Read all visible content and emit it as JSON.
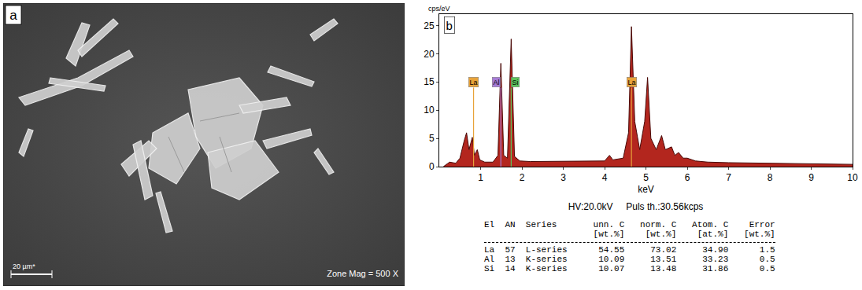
{
  "chart_data": {
    "type": "area",
    "panel": "b",
    "x_label": "keV",
    "y_label": "cps/eV",
    "color": "#b3261e",
    "x": [
      0.1,
      0.25,
      0.4,
      0.5,
      0.6,
      0.66,
      0.72,
      0.8,
      0.85,
      0.92,
      0.98,
      1.1,
      1.3,
      1.42,
      1.49,
      1.56,
      1.65,
      1.74,
      1.82,
      1.95,
      2.2,
      2.5,
      3.0,
      3.5,
      4.0,
      4.12,
      4.2,
      4.45,
      4.58,
      4.65,
      4.73,
      4.85,
      4.97,
      5.04,
      5.12,
      5.25,
      5.38,
      5.47,
      5.62,
      5.7,
      5.79,
      5.9,
      6.0,
      6.2,
      6.5,
      7.0,
      8.0,
      9.0,
      10.0
    ],
    "values": [
      0,
      0.8,
      0.6,
      1.5,
      4.5,
      6,
      3,
      5.2,
      2,
      3,
      1.2,
      0.8,
      0.8,
      2,
      18.3,
      2,
      1.5,
      22.6,
      1.8,
      1,
      0.9,
      0.9,
      0.9,
      0.9,
      1,
      2,
      1.2,
      1.5,
      6,
      24.8,
      8,
      3,
      8,
      15.8,
      5,
      3,
      5.5,
      3,
      3.5,
      2,
      2.5,
      1.5,
      1.5,
      1,
      0.8,
      0.7,
      0.6,
      0.5,
      0.4
    ],
    "xlim": [
      0,
      10
    ],
    "xticks": [
      1,
      2,
      3,
      4,
      5,
      6,
      7,
      8,
      9,
      10
    ],
    "ylim": [
      0,
      27
    ],
    "yticks": [
      0,
      5,
      10,
      15,
      20,
      25
    ],
    "peak_lines": [
      {
        "label": "La",
        "energy": 0.83,
        "height": 14,
        "color": "#e8a33a"
      },
      {
        "label": "Al",
        "energy": 1.49,
        "height": 14,
        "color": "#a67bd6"
      },
      {
        "label": "Si",
        "energy": 1.74,
        "height": 14,
        "color": "#5cc45c"
      },
      {
        "label": "La",
        "energy": 4.65,
        "height": 14,
        "color": "#e8a33a"
      }
    ]
  },
  "image_panel": {
    "label": "a",
    "scale_bar": "20 µm*",
    "magnification": "Zone Mag = 500 X"
  },
  "instrument": [
    "HV:20.0kV",
    "Puls th.:30.56kcps"
  ],
  "table": {
    "header": [
      "El",
      "AN",
      "Series",
      "unn. C",
      "norm. C",
      "Atom. C",
      "Error"
    ],
    "units": [
      null,
      null,
      null,
      "[wt.%]",
      "[wt.%]",
      "[at.%]",
      "[wt.%]"
    ],
    "rows": [
      [
        "La",
        "57",
        "L-series",
        "54.55",
        "73.02",
        "34.90",
        "1.5"
      ],
      [
        "Al",
        "13",
        "K-series",
        "10.09",
        "13.51",
        "33.23",
        "0.5"
      ],
      [
        "Si",
        "14",
        "K-series",
        "10.07",
        "13.48",
        "31.86",
        "0.5"
      ]
    ]
  }
}
